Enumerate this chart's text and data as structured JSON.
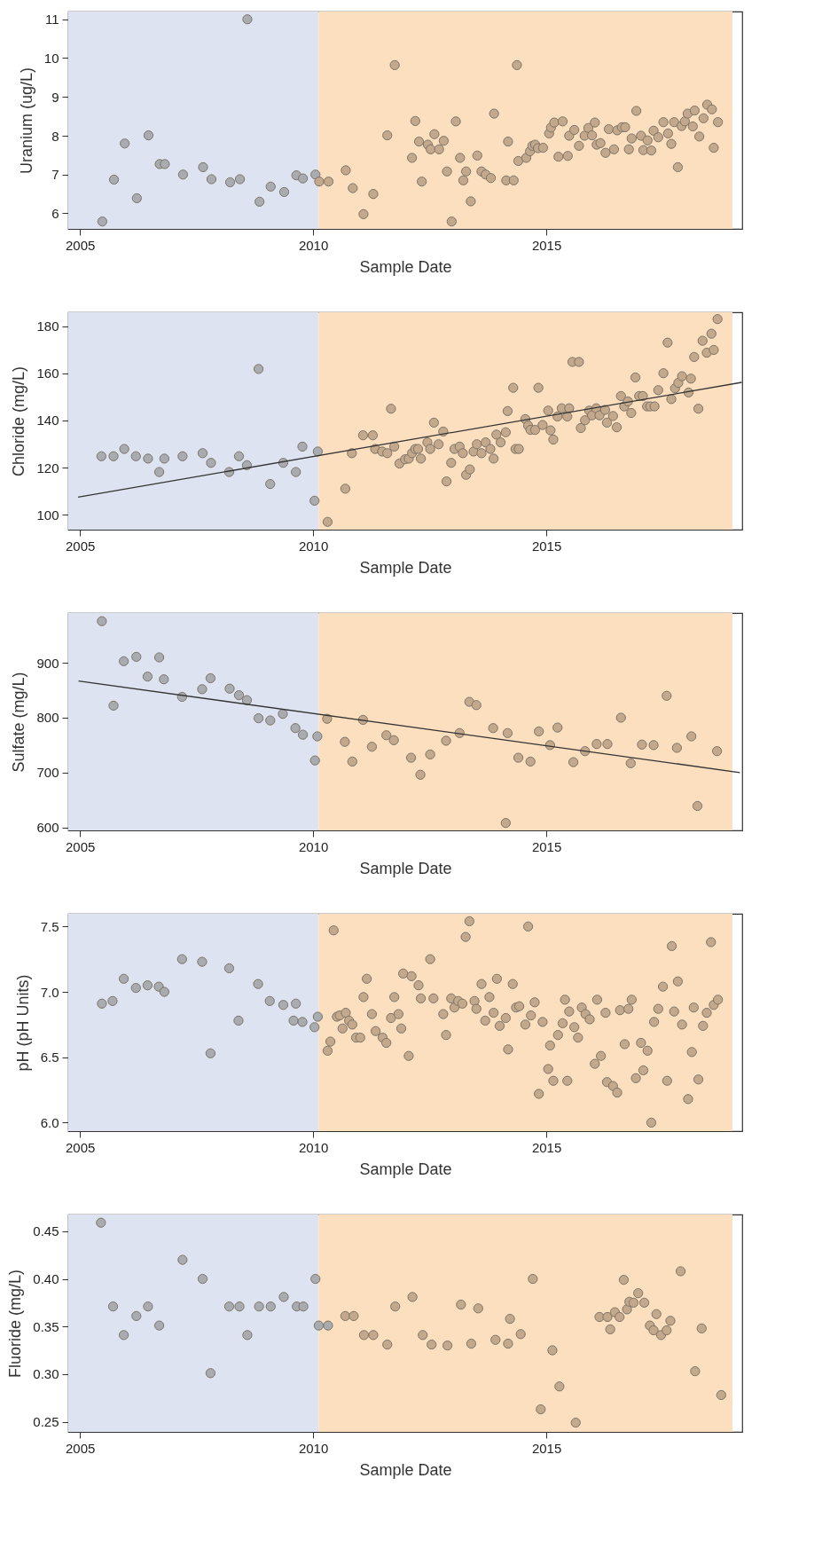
{
  "chart_data": [
    {
      "type": "scatter",
      "xlabel": "Sample Date",
      "ylabel": "Uranium (ug/L)",
      "xlim": [
        2004.75,
        2019.2
      ],
      "ylim": [
        5.6,
        11.2
      ],
      "xticks": [
        2005,
        2010,
        2015
      ],
      "yticks": [
        6,
        7,
        8,
        9,
        10,
        11
      ],
      "grid": false,
      "marker": "circle",
      "bands": [
        {
          "axis": "x",
          "from": 2004.75,
          "to": 2010.12,
          "color": "#dde3f0"
        },
        {
          "axis": "x",
          "from": 2010.12,
          "to": 2018.99,
          "color": "#fcdfbf"
        }
      ],
      "series": [
        {
          "color": "#a8abb0",
          "x": [
            2005.48,
            2005.73,
            2005.96,
            2006.22,
            2006.47,
            2006.71,
            2006.82,
            2007.21,
            2007.64,
            2007.82,
            2008.22,
            2008.43,
            2008.59,
            2008.85,
            2009.09,
            2009.38,
            2009.64,
            2009.78,
            2010.05
          ],
          "values": [
            5.79,
            6.87,
            7.8,
            6.39,
            8.01,
            7.27,
            7.27,
            7.0,
            7.19,
            6.88,
            6.8,
            6.88,
            11.0,
            6.3,
            6.69,
            6.55,
            6.98,
            6.9,
            7.0
          ]
        },
        {
          "color": "#c4a88b",
          "x": [
            2010.13,
            2010.33,
            2010.7,
            2010.85,
            2011.08,
            2011.29,
            2011.59,
            2011.75,
            2012.12,
            2012.19,
            2012.27,
            2012.33,
            2012.46,
            2012.52,
            2012.6,
            2012.7,
            2012.8,
            2012.87,
            2012.97,
            2013.06,
            2013.15,
            2013.22,
            2013.28,
            2013.38,
            2013.52,
            2013.61,
            2013.7,
            2013.81,
            2013.88,
            2014.14,
            2014.18,
            2014.3,
            2014.37,
            2014.4,
            2014.57,
            2014.65,
            2014.7,
            2014.76,
            2014.82,
            2014.93,
            2015.06,
            2015.1,
            2015.17,
            2015.26,
            2015.35,
            2015.46,
            2015.49,
            2015.6,
            2015.7,
            2015.82,
            2015.9,
            2015.98,
            2016.04,
            2016.08,
            2016.16,
            2016.27,
            2016.34,
            2016.45,
            2016.52,
            2016.62,
            2016.69,
            2016.77,
            2016.83,
            2016.93,
            2017.03,
            2017.08,
            2017.17,
            2017.25,
            2017.3,
            2017.4,
            2017.51,
            2017.61,
            2017.68,
            2017.74,
            2017.82,
            2017.9,
            2017.97,
            2018.03,
            2018.14,
            2018.18,
            2018.28,
            2018.37,
            2018.45,
            2018.55,
            2018.59,
            2018.68
          ],
          "values": [
            6.82,
            6.82,
            7.11,
            6.65,
            5.98,
            6.5,
            8.01,
            9.82,
            7.43,
            8.38,
            7.85,
            6.82,
            7.77,
            7.65,
            8.04,
            7.65,
            7.87,
            7.08,
            5.79,
            8.37,
            7.43,
            6.85,
            7.08,
            6.31,
            7.49,
            7.08,
            7.0,
            6.91,
            8.57,
            6.85,
            7.85,
            6.85,
            9.82,
            7.35,
            7.43,
            7.6,
            7.74,
            7.77,
            7.68,
            7.69,
            8.06,
            8.21,
            8.34,
            7.46,
            8.37,
            7.48,
            8.0,
            8.15,
            7.74,
            8.0,
            8.2,
            8.01,
            8.34,
            7.77,
            7.81,
            7.56,
            8.17,
            7.65,
            8.14,
            8.22,
            8.22,
            7.65,
            7.93,
            8.64,
            8.0,
            7.63,
            7.88,
            7.62,
            8.13,
            7.96,
            8.35,
            8.06,
            7.79,
            8.35,
            7.19,
            8.25,
            8.37,
            8.57,
            8.24,
            8.65,
            7.98,
            8.45,
            8.8,
            8.68,
            7.69,
            8.35
          ]
        }
      ]
    },
    {
      "type": "scatter",
      "xlabel": "Sample Date",
      "ylabel": "Chloride (mg/L)",
      "xlim": [
        2004.75,
        2019.2
      ],
      "ylim": [
        93.6,
        186
      ],
      "xticks": [
        2005,
        2010,
        2015
      ],
      "yticks": [
        100,
        120,
        140,
        160,
        180
      ],
      "grid": false,
      "marker": "circle",
      "bands": [
        {
          "axis": "x",
          "from": 2004.75,
          "to": 2010.12,
          "color": "#dde3f0"
        },
        {
          "axis": "x",
          "from": 2010.12,
          "to": 2018.99,
          "color": "#fcdfbf"
        }
      ],
      "series": [
        {
          "color": "#a8abb0",
          "x": [
            2005.46,
            2005.72,
            2005.95,
            2006.2,
            2006.46,
            2006.7,
            2006.81,
            2007.2,
            2007.63,
            2007.81,
            2008.2,
            2008.41,
            2008.58,
            2008.83,
            2009.08,
            2009.36,
            2009.63,
            2009.77,
            2010.03,
            2010.1
          ],
          "values": [
            124.8,
            124.8,
            127.9,
            124.8,
            123.8,
            118.1,
            123.8,
            124.8,
            126.1,
            122.0,
            118.1,
            124.8,
            121.0,
            161.9,
            113.0,
            122.0,
            118.1,
            128.9,
            105.9,
            126.8
          ]
        },
        {
          "color": "#c4a88b",
          "x": [
            2010.31,
            2010.69,
            2010.83,
            2011.07,
            2011.28,
            2011.33,
            2011.48,
            2011.59,
            2011.67,
            2011.74,
            2011.85,
            2011.97,
            2012.05,
            2012.12,
            2012.19,
            2012.25,
            2012.31,
            2012.45,
            2012.51,
            2012.59,
            2012.69,
            2012.79,
            2012.86,
            2012.96,
            2013.03,
            2013.14,
            2013.21,
            2013.28,
            2013.36,
            2013.44,
            2013.51,
            2013.61,
            2013.7,
            2013.8,
            2013.87,
            2013.93,
            2014.02,
            2014.13,
            2014.17,
            2014.29,
            2014.34,
            2014.41,
            2014.55,
            2014.61,
            2014.66,
            2014.76,
            2014.83,
            2014.92,
            2015.04,
            2015.09,
            2015.15,
            2015.24,
            2015.33,
            2015.45,
            2015.49,
            2015.56,
            2015.7,
            2015.74,
            2015.83,
            2015.92,
            2015.98,
            2016.07,
            2016.14,
            2016.26,
            2016.3,
            2016.43,
            2016.51,
            2016.6,
            2016.67,
            2016.75,
            2016.82,
            2016.91,
            2016.99,
            2017.07,
            2017.16,
            2017.23,
            2017.32,
            2017.4,
            2017.51,
            2017.6,
            2017.68,
            2017.76,
            2017.83,
            2017.91,
            2018.05,
            2018.1,
            2018.17,
            2018.26,
            2018.35,
            2018.44,
            2018.54,
            2018.59,
            2018.67
          ],
          "values": [
            96.9,
            111.0,
            126.1,
            133.7,
            133.7,
            127.9,
            126.8,
            126.1,
            145.0,
            128.9,
            121.7,
            123.5,
            123.8,
            126.1,
            127.9,
            127.9,
            123.8,
            130.7,
            127.9,
            139.1,
            129.9,
            135.3,
            114.1,
            122.0,
            127.9,
            128.9,
            126.1,
            116.9,
            119.2,
            126.8,
            129.9,
            126.1,
            130.7,
            127.9,
            123.8,
            134.0,
            130.7,
            135.0,
            144.0,
            153.9,
            127.9,
            127.9,
            140.6,
            137.8,
            136.0,
            136.0,
            153.9,
            138.1,
            144.2,
            135.8,
            131.9,
            141.7,
            145.2,
            141.7,
            145.2,
            164.9,
            164.9,
            136.8,
            140.1,
            144.2,
            142.2,
            145.2,
            142.2,
            144.5,
            139.1,
            141.9,
            137.1,
            150.4,
            146.0,
            148.1,
            143.2,
            158.3,
            150.4,
            150.4,
            146.0,
            146.0,
            146.0,
            152.9,
            160.1,
            173.1,
            149.1,
            153.7,
            156.0,
            158.8,
            151.9,
            157.8,
            167.0,
            145.0,
            173.9,
            168.8,
            176.9,
            170.0,
            183.1
          ]
        },
        {
          "type": "line",
          "marker": "none",
          "color": "#333333",
          "x": [
            2004.96,
            2019.19
          ],
          "values": [
            107.4,
            156.2
          ]
        }
      ]
    },
    {
      "type": "scatter",
      "xlabel": "Sample Date",
      "ylabel": "Sulfate (mg/L)",
      "xlim": [
        2004.75,
        2019.2
      ],
      "ylim": [
        594.5,
        990.9
      ],
      "xticks": [
        2005,
        2010,
        2015
      ],
      "yticks": [
        600,
        700,
        800,
        900
      ],
      "grid": false,
      "marker": "circle",
      "bands": [
        {
          "axis": "x",
          "from": 2004.75,
          "to": 2010.12,
          "color": "#dde3f0"
        },
        {
          "axis": "x",
          "from": 2010.12,
          "to": 2018.99,
          "color": "#fcdfbf"
        }
      ],
      "series": [
        {
          "color": "#a8abb0",
          "x": [
            2005.47,
            2005.72,
            2005.94,
            2006.21,
            2006.45,
            2006.7,
            2006.8,
            2007.19,
            2007.62,
            2007.8,
            2008.21,
            2008.41,
            2008.58,
            2008.83,
            2009.08,
            2009.35,
            2009.62,
            2009.78,
            2010.04,
            2010.09
          ],
          "values": [
            976,
            822,
            903,
            911,
            875,
            910,
            870,
            838,
            852,
            872,
            853,
            841,
            832,
            799,
            795,
            807,
            781,
            769,
            722,
            766
          ]
        },
        {
          "color": "#c4a88b",
          "x": [
            2010.3,
            2010.68,
            2010.84,
            2011.07,
            2011.26,
            2011.57,
            2011.73,
            2012.1,
            2012.3,
            2012.51,
            2012.85,
            2013.14,
            2013.35,
            2013.5,
            2013.86,
            2014.13,
            2014.17,
            2014.4,
            2014.66,
            2014.84,
            2015.08,
            2015.24,
            2015.58,
            2015.83,
            2016.08,
            2016.31,
            2016.6,
            2016.81,
            2017.05,
            2017.3,
            2017.58,
            2017.8,
            2018.11,
            2018.24,
            2018.66
          ],
          "values": [
            798,
            756,
            720,
            796,
            747,
            768,
            759,
            727,
            696,
            733,
            758,
            772,
            829,
            823,
            781,
            608,
            772,
            727,
            720,
            775,
            750,
            782,
            719,
            739,
            752,
            752,
            800,
            717,
            751,
            750,
            840,
            745,
            766,
            639,
            739
          ]
        },
        {
          "type": "line",
          "marker": "none",
          "color": "#333333",
          "x": [
            2004.97,
            2019.15
          ],
          "values": [
            867,
            700
          ]
        }
      ]
    },
    {
      "type": "scatter",
      "xlabel": "Sample Date",
      "ylabel": "pH (pH Units)",
      "xlim": [
        2004.75,
        2019.2
      ],
      "ylim": [
        5.935,
        7.597
      ],
      "xticks": [
        2005,
        2010,
        2015
      ],
      "yticks": [
        {
          "value": 6,
          "label": "6.0"
        },
        6.5,
        {
          "value": 7,
          "label": "7.0"
        },
        7.5
      ],
      "grid": false,
      "marker": "circle",
      "bands": [
        {
          "axis": "x",
          "from": 2004.75,
          "to": 2010.12,
          "color": "#dde3f0"
        },
        {
          "axis": "x",
          "from": 2010.12,
          "to": 2018.99,
          "color": "#fcdfbf"
        }
      ],
      "series": [
        {
          "color": "#a8abb0",
          "x": [
            2005.47,
            2005.7,
            2005.94,
            2006.2,
            2006.45,
            2006.69,
            2006.81,
            2007.19,
            2007.62,
            2007.8,
            2008.2,
            2008.4,
            2008.82,
            2009.07,
            2009.36,
            2009.63,
            2009.58,
            2009.77,
            2010.03,
            2010.1
          ],
          "values": [
            6.91,
            6.93,
            7.1,
            7.03,
            7.05,
            7.04,
            7.0,
            7.25,
            7.23,
            6.53,
            7.18,
            6.78,
            7.06,
            6.93,
            6.9,
            6.91,
            6.78,
            6.77,
            6.73,
            6.81
          ]
        },
        {
          "color": "#c4a88b",
          "x": [
            2010.31,
            2010.37,
            2010.44,
            2010.51,
            2010.57,
            2010.63,
            2010.7,
            2010.77,
            2010.84,
            2010.92,
            2011.01,
            2011.08,
            2011.15,
            2011.26,
            2011.34,
            2011.49,
            2011.57,
            2011.67,
            2011.74,
            2011.83,
            2011.89,
            2011.93,
            2012.05,
            2012.11,
            2012.26,
            2012.31,
            2012.51,
            2012.58,
            2012.79,
            2012.85,
            2012.96,
            2013.03,
            2013.11,
            2013.2,
            2013.27,
            2013.35,
            2013.46,
            2013.5,
            2013.61,
            2013.69,
            2013.78,
            2013.87,
            2013.94,
            2014.0,
            2014.13,
            2014.18,
            2014.28,
            2014.35,
            2014.42,
            2014.55,
            2014.61,
            2014.67,
            2014.75,
            2014.84,
            2014.92,
            2015.08,
            2015.04,
            2015.15,
            2015.25,
            2015.35,
            2015.4,
            2015.45,
            2015.49,
            2015.6,
            2015.68,
            2015.76,
            2015.84,
            2015.93,
            2016.04,
            2016.09,
            2016.17,
            2016.27,
            2016.3,
            2016.43,
            2016.52,
            2016.58,
            2016.68,
            2016.76,
            2016.83,
            2016.92,
            2017.03,
            2017.08,
            2017.17,
            2017.25,
            2017.31,
            2017.4,
            2017.5,
            2017.59,
            2017.69,
            2017.74,
            2017.82,
            2017.91,
            2018.04,
            2018.12,
            2018.16,
            2018.26,
            2018.36,
            2018.44,
            2018.53,
            2018.59,
            2018.68
          ],
          "values": [
            6.55,
            6.62,
            7.47,
            6.81,
            6.82,
            6.72,
            6.84,
            6.78,
            6.75,
            6.65,
            6.65,
            6.96,
            7.1,
            6.83,
            6.7,
            6.65,
            6.61,
            6.8,
            6.96,
            6.83,
            6.72,
            7.14,
            6.51,
            7.12,
            7.05,
            6.95,
            7.25,
            6.95,
            6.83,
            6.67,
            6.95,
            6.88,
            6.93,
            6.91,
            7.42,
            7.54,
            6.93,
            6.87,
            7.06,
            6.78,
            6.96,
            6.84,
            7.1,
            6.74,
            6.8,
            6.56,
            7.06,
            6.88,
            6.89,
            6.75,
            7.5,
            6.82,
            6.92,
            6.22,
            6.77,
            6.59,
            6.41,
            6.32,
            6.67,
            6.76,
            6.94,
            6.32,
            6.85,
            6.73,
            6.65,
            6.88,
            6.83,
            6.79,
            6.45,
            6.94,
            6.51,
            6.84,
            6.31,
            6.28,
            6.23,
            6.86,
            6.6,
            6.87,
            6.94,
            6.34,
            6.61,
            6.4,
            6.55,
            6.0,
            6.77,
            6.87,
            7.04,
            6.32,
            7.35,
            6.85,
            7.08,
            6.75,
            6.18,
            6.54,
            6.88,
            6.33,
            6.74,
            6.84,
            7.38,
            6.9,
            6.94
          ]
        }
      ]
    },
    {
      "type": "scatter",
      "xlabel": "Sample Date",
      "ylabel": "Fluoride (mg/L)",
      "xlim": [
        2004.75,
        2019.2
      ],
      "ylim": [
        0.2393,
        0.4676
      ],
      "xticks": [
        2005,
        2010,
        2015
      ],
      "yticks": [
        0.25,
        {
          "value": 0.3,
          "label": "0.30"
        },
        0.35,
        {
          "value": 0.4,
          "label": "0.40"
        },
        0.45
      ],
      "grid": false,
      "marker": "circle",
      "bands": [
        {
          "axis": "x",
          "from": 2004.75,
          "to": 2010.12,
          "color": "#dde3f0"
        },
        {
          "axis": "x",
          "from": 2010.12,
          "to": 2018.99,
          "color": "#fcdfbf"
        }
      ],
      "series": [
        {
          "color": "#a8abb0",
          "x": [
            2005.45,
            2005.71,
            2005.94,
            2006.21,
            2006.46,
            2006.7,
            2007.2,
            2007.63,
            2007.8,
            2008.2,
            2008.42,
            2008.59,
            2008.84,
            2009.09,
            2009.37,
            2009.65,
            2009.79,
            2010.05,
            2010.12,
            2010.32
          ],
          "values": [
            0.459,
            0.371,
            0.341,
            0.361,
            0.371,
            0.351,
            0.42,
            0.4,
            0.301,
            0.371,
            0.371,
            0.341,
            0.371,
            0.371,
            0.381,
            0.371,
            0.371,
            0.4,
            0.351,
            0.351
          ]
        },
        {
          "color": "#c4a88b",
          "x": [
            2010.69,
            2010.87,
            2011.09,
            2011.29,
            2011.59,
            2011.76,
            2012.13,
            2012.35,
            2012.54,
            2012.88,
            2013.17,
            2013.39,
            2013.54,
            2013.91,
            2014.18,
            2014.22,
            2014.45,
            2014.71,
            2014.88,
            2015.13,
            2015.28,
            2015.63,
            2016.14,
            2016.31,
            2016.37,
            2016.47,
            2016.57,
            2016.66,
            2016.73,
            2016.78,
            2016.87,
            2016.97,
            2017.1,
            2017.22,
            2017.3,
            2017.36,
            2017.46,
            2017.58,
            2017.66,
            2017.88,
            2018.19,
            2018.33,
            2018.75
          ],
          "values": [
            0.361,
            0.361,
            0.341,
            0.341,
            0.331,
            0.371,
            0.381,
            0.341,
            0.331,
            0.33,
            0.373,
            0.332,
            0.369,
            0.336,
            0.332,
            0.358,
            0.342,
            0.4,
            0.263,
            0.325,
            0.287,
            0.249,
            0.36,
            0.36,
            0.347,
            0.365,
            0.36,
            0.399,
            0.368,
            0.376,
            0.375,
            0.385,
            0.375,
            0.351,
            0.346,
            0.363,
            0.341,
            0.346,
            0.356,
            0.408,
            0.303,
            0.348,
            0.278
          ]
        }
      ]
    }
  ]
}
